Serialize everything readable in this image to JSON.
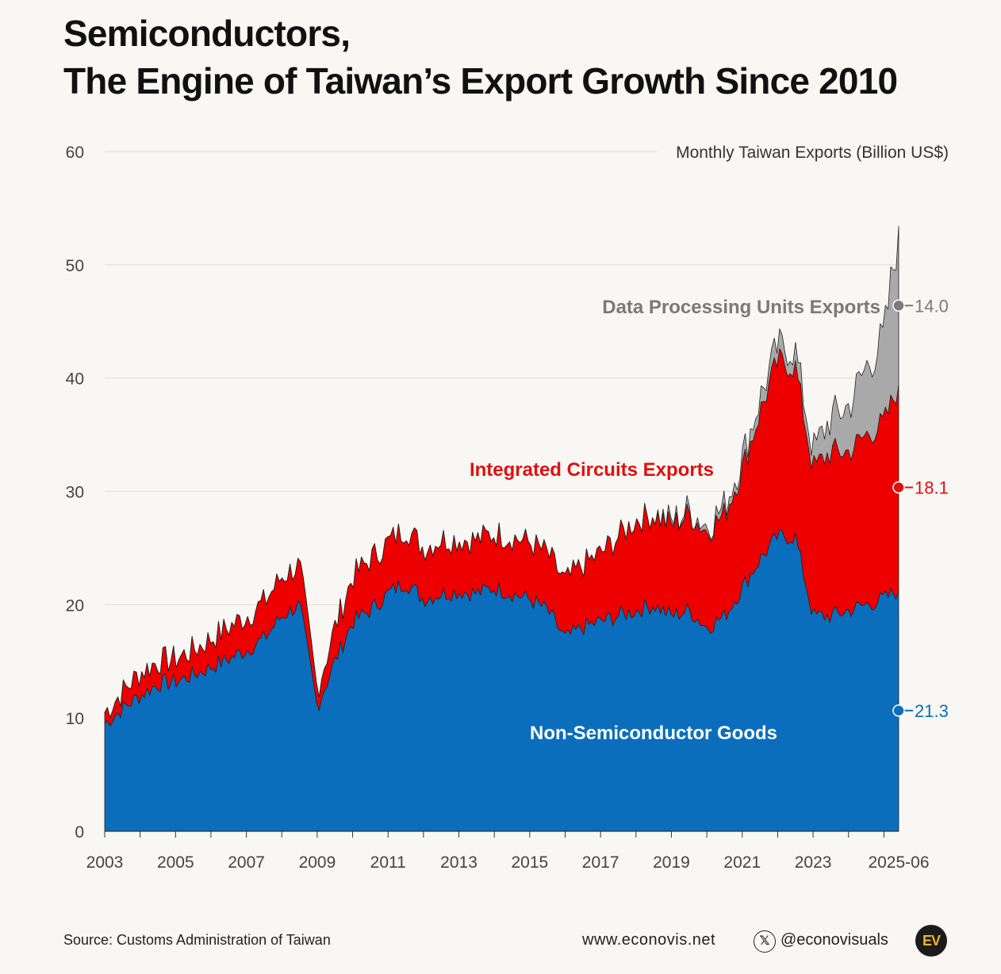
{
  "header": {
    "title_line1": "Semiconductors,",
    "title_line2": "The Engine of Taiwan’s Export Growth Since 2010"
  },
  "footer": {
    "source": "Source: Customs Administration of Taiwan",
    "website": "www.econovis.net",
    "x_glyph": "𝕏",
    "handle": "@econovisuals",
    "logo": "EV"
  },
  "chart_data": {
    "type": "area",
    "stacked": true,
    "subtitle": "Monthly Taiwan Exports (Billion US$)",
    "ylim": [
      0,
      60
    ],
    "yticks": [
      0,
      10,
      20,
      30,
      40,
      50,
      60
    ],
    "grid": true,
    "xtick_labels": [
      "2003",
      "2005",
      "2007",
      "2009",
      "2011",
      "2013",
      "2015",
      "2017",
      "2019",
      "2021",
      "2023",
      "2025-06"
    ],
    "x": [
      "2003-01",
      "2003-07",
      "2004-01",
      "2004-07",
      "2005-01",
      "2005-07",
      "2006-01",
      "2006-07",
      "2007-01",
      "2007-07",
      "2008-01",
      "2008-07",
      "2009-01",
      "2009-07",
      "2010-01",
      "2010-07",
      "2011-01",
      "2011-07",
      "2012-01",
      "2012-07",
      "2013-01",
      "2013-07",
      "2014-01",
      "2014-07",
      "2015-01",
      "2015-07",
      "2016-01",
      "2016-07",
      "2017-01",
      "2017-07",
      "2018-01",
      "2018-07",
      "2019-01",
      "2019-07",
      "2020-01",
      "2020-07",
      "2021-01",
      "2021-07",
      "2022-01",
      "2022-07",
      "2023-01",
      "2023-07",
      "2024-01",
      "2024-07",
      "2025-01",
      "2025-06"
    ],
    "series": [
      {
        "name": "Non-Semiconductor Goods",
        "color": "#0a6ebd",
        "end_label": "21.3",
        "values": [
          9.5,
          10.8,
          12.0,
          13.0,
          13.2,
          13.8,
          14.5,
          15.2,
          16.0,
          17.0,
          19.0,
          20.0,
          11.0,
          15.0,
          18.5,
          19.5,
          21.0,
          22.0,
          20.5,
          21.0,
          21.2,
          21.0,
          21.5,
          21.0,
          20.5,
          19.5,
          17.0,
          18.0,
          18.5,
          19.0,
          19.5,
          20.0,
          19.0,
          19.5,
          18.0,
          19.0,
          21.5,
          24.0,
          26.0,
          26.0,
          19.0,
          19.0,
          19.5,
          20.0,
          20.5,
          21.3
        ]
      },
      {
        "name": "Integrated Circuits Exports",
        "color": "#ee0000",
        "end_label": "18.1",
        "values": [
          1.0,
          1.5,
          2.0,
          2.0,
          2.0,
          2.2,
          2.5,
          2.8,
          3.0,
          3.2,
          3.5,
          3.5,
          1.5,
          3.0,
          4.0,
          4.5,
          4.5,
          4.8,
          4.5,
          4.8,
          4.6,
          4.7,
          4.8,
          5.0,
          5.0,
          5.0,
          5.0,
          5.5,
          6.0,
          7.0,
          8.0,
          8.0,
          8.0,
          8.5,
          8.5,
          9.0,
          10.5,
          13.0,
          15.5,
          15.0,
          13.0,
          14.5,
          14.0,
          15.0,
          15.5,
          18.1
        ]
      },
      {
        "name": "Data Processing Units Exports",
        "color": "#a9a9a9",
        "end_label": "14.0",
        "values": [
          0,
          0,
          0,
          0,
          0,
          0,
          0,
          0,
          0,
          0,
          0,
          0,
          0,
          0,
          0,
          0,
          0,
          0,
          0,
          0,
          0,
          0,
          0,
          0,
          0,
          0,
          0,
          0,
          0,
          0,
          0,
          0,
          0.3,
          0.4,
          0.5,
          0.7,
          1.0,
          1.2,
          1.3,
          1.4,
          1.5,
          3.0,
          4.0,
          6.0,
          7.5,
          14.0
        ]
      }
    ]
  }
}
